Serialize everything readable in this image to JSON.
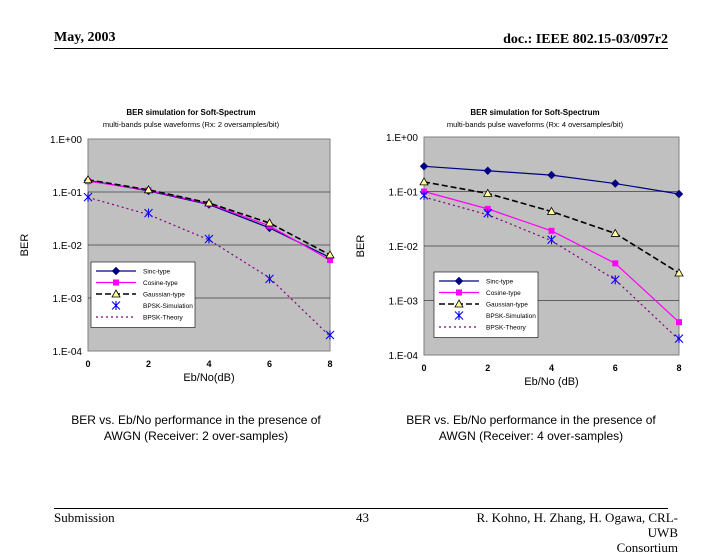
{
  "header": {
    "date": "May, 2003",
    "doc": "doc.: IEEE 802.15-03/097r2"
  },
  "footer": {
    "left": "Submission",
    "page": "43",
    "right_line1": "R. Kohno, H. Zhang, H. Ogawa, CRL-UWB",
    "right_line2": "Consortium"
  },
  "captions": [
    {
      "line1": "BER vs. Eb/No performance in the presence of",
      "line2": "AWGN (Receiver: 2 over-samples)"
    },
    {
      "line1": "BER vs. Eb/No performance in the presence of",
      "line2": "AWGN (Receiver: 4 over-samples)"
    }
  ],
  "chart_data": [
    {
      "type": "line",
      "title": "BER simulation for Soft-Spectrum",
      "subtitle": "multi-bands pulse waveforms (Rx: 2 oversamples/bit)",
      "xlabel": "Eb/No(dB)",
      "ylabel": "BER",
      "x": [
        0,
        2,
        4,
        6,
        8
      ],
      "y_scale": "log",
      "ylim": [
        0.0001,
        1
      ],
      "ytick_labels": [
        "1.E+00",
        "1.E-01",
        "1.E-02",
        "1.E-03",
        "1.E-04"
      ],
      "legend_position": "bottom-left",
      "series": [
        {
          "name": "Sinc-type",
          "values": [
            0.165,
            0.105,
            0.058,
            0.021,
            0.0058
          ],
          "color": "#000080"
        },
        {
          "name": "Cosine-type",
          "values": [
            0.16,
            0.108,
            0.06,
            0.023,
            0.0052
          ],
          "color": "#ff00ff"
        },
        {
          "name": "Gaussian-type",
          "values": [
            0.17,
            0.11,
            0.062,
            0.026,
            0.0065
          ],
          "color": "#000000"
        },
        {
          "name": "BPSK-Simulation",
          "values": [
            0.08,
            0.04,
            0.013,
            0.0023,
            0.0002
          ],
          "color": "#0000ff"
        },
        {
          "name": "BPSK-Theory",
          "values": [
            0.079,
            0.0375,
            0.0125,
            0.0024,
            0.00019
          ],
          "color": "#800080"
        }
      ]
    },
    {
      "type": "line",
      "title": "BER simulation for Soft-Spectrum",
      "subtitle": "multi-bands pulse waveforms (Rx: 4 oversamples/bit)",
      "xlabel": "Eb/No (dB)",
      "ylabel": "BER",
      "x": [
        0,
        2,
        4,
        6,
        8
      ],
      "y_scale": "log",
      "ylim": [
        0.0001,
        1
      ],
      "ytick_labels": [
        "1.E+00",
        "1.E-01",
        "1.E-02",
        "1.E-03",
        "1.E-04"
      ],
      "legend_position": "bottom-left",
      "series": [
        {
          "name": "Sinc-type",
          "values": [
            0.29,
            0.24,
            0.2,
            0.14,
            0.09
          ],
          "color": "#000080"
        },
        {
          "name": "Cosine-type",
          "values": [
            0.1,
            0.048,
            0.019,
            0.0048,
            0.0004
          ],
          "color": "#ff00ff"
        },
        {
          "name": "Gaussian-type",
          "values": [
            0.15,
            0.092,
            0.043,
            0.017,
            0.0032
          ],
          "color": "#000000"
        },
        {
          "name": "BPSK-Simulation",
          "values": [
            0.085,
            0.04,
            0.013,
            0.0024,
            0.0002
          ],
          "color": "#0000ff"
        },
        {
          "name": "BPSK-Theory",
          "values": [
            0.079,
            0.0375,
            0.0125,
            0.0024,
            0.00019
          ],
          "color": "#800080"
        }
      ]
    }
  ]
}
